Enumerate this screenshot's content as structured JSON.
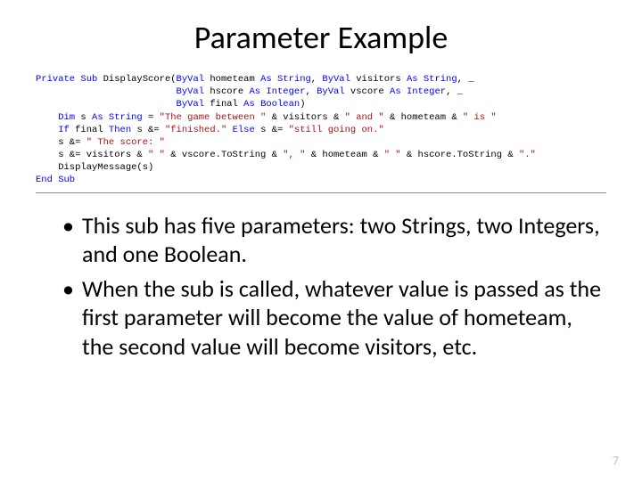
{
  "title": "Parameter Example",
  "code": {
    "keyword_color": "#0000ff",
    "string_color": "#a31515",
    "l1a": "Private",
    "l1b": " Sub",
    "l1c": " DisplayScore(",
    "l1d": "ByVal",
    "l1e": " hometeam ",
    "l1f": "As",
    "l1g": " String",
    "l1h": ", ",
    "l1i": "ByVal",
    "l1j": " visitors ",
    "l1k": "As",
    "l1l": " String",
    "l1m": ", _",
    "l2a": "                         ",
    "l2b": "ByVal",
    "l2c": " hscore ",
    "l2d": "As",
    "l2e": " Integer",
    "l2f": ", ",
    "l2g": "ByVal",
    "l2h": " vscore ",
    "l2i": "As",
    "l2j": " Integer",
    "l2k": ", _",
    "l3a": "                         ",
    "l3b": "ByVal",
    "l3c": " final ",
    "l3d": "As",
    "l3e": " Boolean",
    "l3f": ")",
    "l4a": "    Dim",
    "l4b": " s ",
    "l4c": "As",
    "l4d": " String",
    "l4e": " = ",
    "l4f": "\"The game between \"",
    "l4g": " & visitors & ",
    "l4h": "\" and \"",
    "l4i": " & hometeam & ",
    "l4j": "\" is \"",
    "l5a": "    If",
    "l5b": " final ",
    "l5c": "Then",
    "l5d": " s &= ",
    "l5e": "\"finished.\"",
    "l5f": " Else",
    "l5g": " s &= ",
    "l5h": "\"still going on.\"",
    "l6a": "    s &= ",
    "l6b": "\" The score: \"",
    "l7a": "    s &= visitors & ",
    "l7b": "\" \"",
    "l7c": " & vscore.ToString & ",
    "l7d": "\", \"",
    "l7e": " & hometeam & ",
    "l7f": "\" \"",
    "l7g": " & hscore.ToString & ",
    "l7h": "\".\"",
    "l8a": "    DisplayMessage(s)",
    "l9a": "End",
    "l9b": " Sub"
  },
  "bullets": [
    "This sub has five parameters: two Strings, two Integers, and one Boolean.",
    "When the sub is called, whatever value is passed as the first parameter will become the value of hometeam, the second value will become visitors, etc."
  ],
  "page_number": "7"
}
